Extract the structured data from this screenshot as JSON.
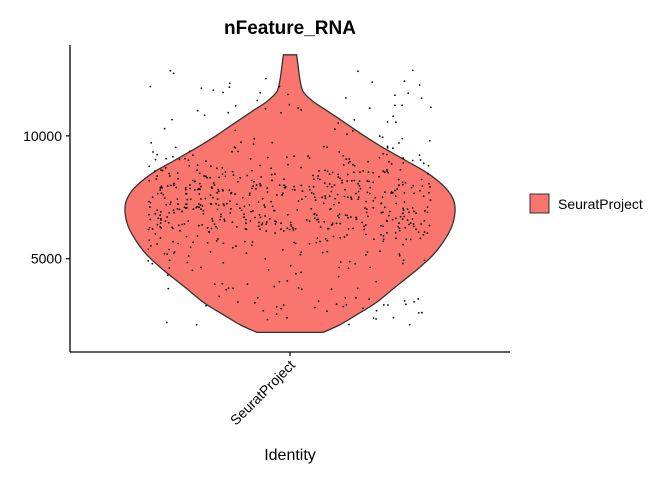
{
  "chart_data": {
    "type": "violin",
    "title": "nFeature_RNA",
    "xlabel": "Identity",
    "ylabel": "",
    "categories": [
      "SeuratProject"
    ],
    "ylim": [
      1200,
      13700
    ],
    "yticks": [
      5000,
      10000
    ],
    "series": [
      {
        "name": "SeuratProject",
        "color": "#F8766D",
        "min": 2000,
        "max": 13300,
        "density_profile": [
          [
            2000,
            0.2
          ],
          [
            2300,
            0.3
          ],
          [
            2700,
            0.4
          ],
          [
            3200,
            0.52
          ],
          [
            3800,
            0.63
          ],
          [
            4500,
            0.76
          ],
          [
            5100,
            0.86
          ],
          [
            5700,
            0.93
          ],
          [
            6300,
            0.98
          ],
          [
            6900,
            1.0
          ],
          [
            7400,
            0.99
          ],
          [
            7900,
            0.94
          ],
          [
            8500,
            0.83
          ],
          [
            9000,
            0.7
          ],
          [
            9500,
            0.57
          ],
          [
            10000,
            0.45
          ],
          [
            10500,
            0.34
          ],
          [
            11000,
            0.23
          ],
          [
            11400,
            0.14
          ],
          [
            11800,
            0.08
          ],
          [
            12300,
            0.06
          ],
          [
            12800,
            0.05
          ],
          [
            13300,
            0.04
          ]
        ],
        "n_points": 700
      }
    ],
    "legend": {
      "position": "right",
      "entries": [
        "SeuratProject"
      ]
    },
    "grid": false
  }
}
